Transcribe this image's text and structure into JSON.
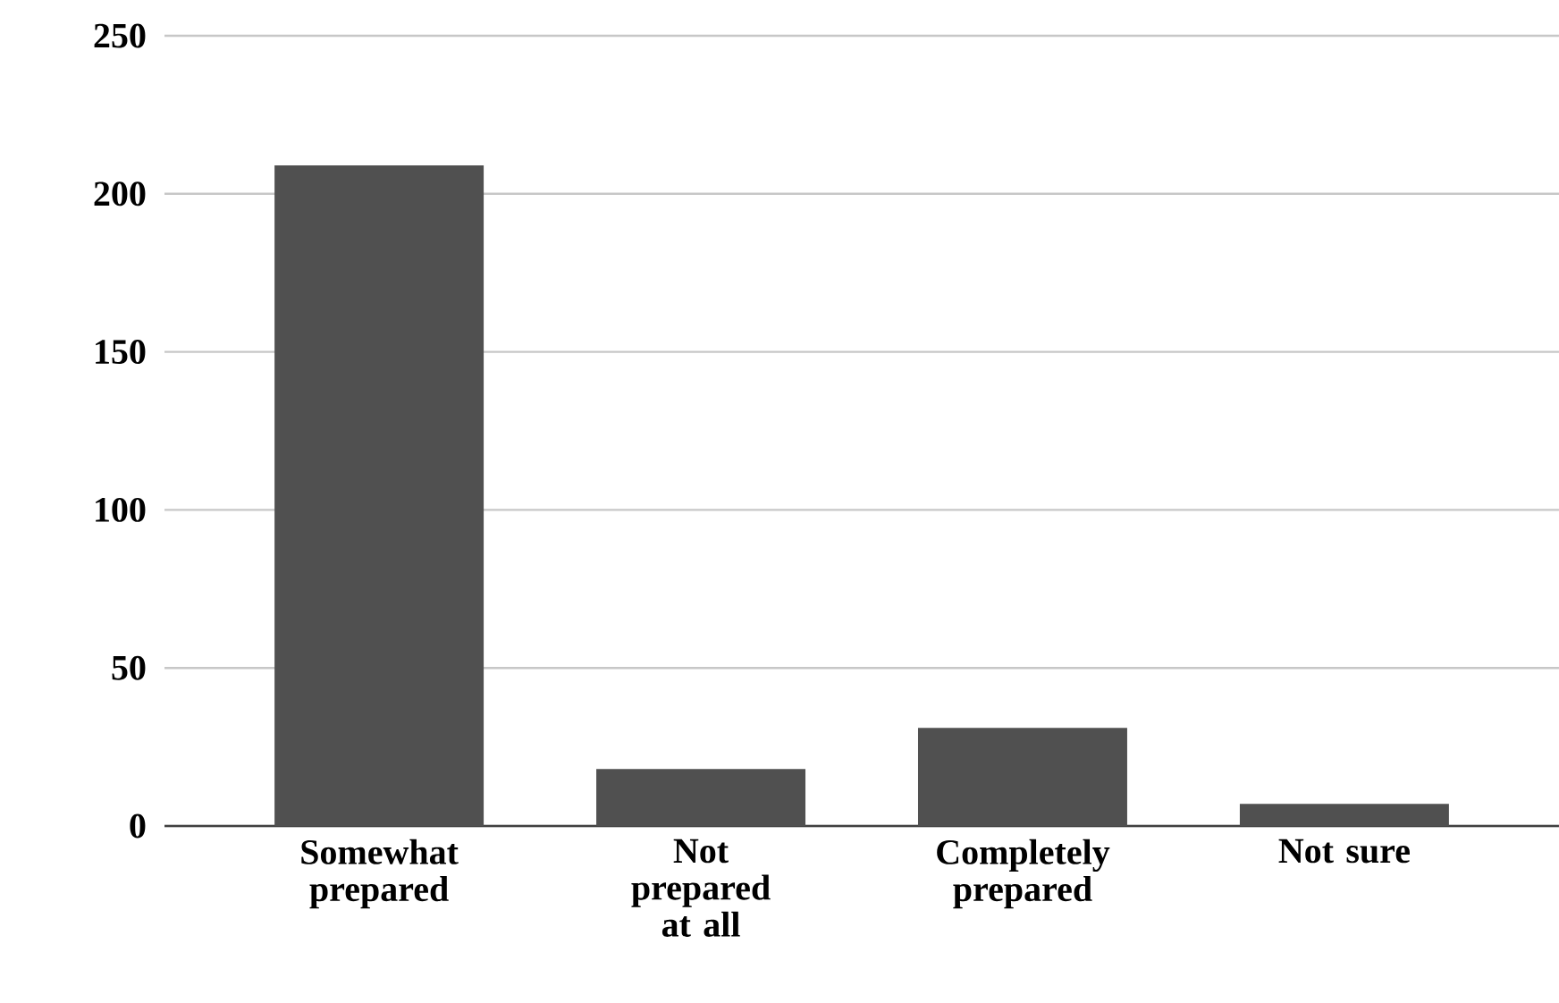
{
  "chart_data": {
    "type": "bar",
    "categories": [
      "Somewhat prepared",
      "Not prepared at all",
      "Completely prepared",
      "Not sure"
    ],
    "values": [
      209,
      18,
      31,
      7
    ],
    "color": "#505050",
    "ylim": [
      0,
      250
    ],
    "yticks": [
      0,
      50,
      100,
      150,
      200,
      250
    ],
    "grid": "y"
  }
}
